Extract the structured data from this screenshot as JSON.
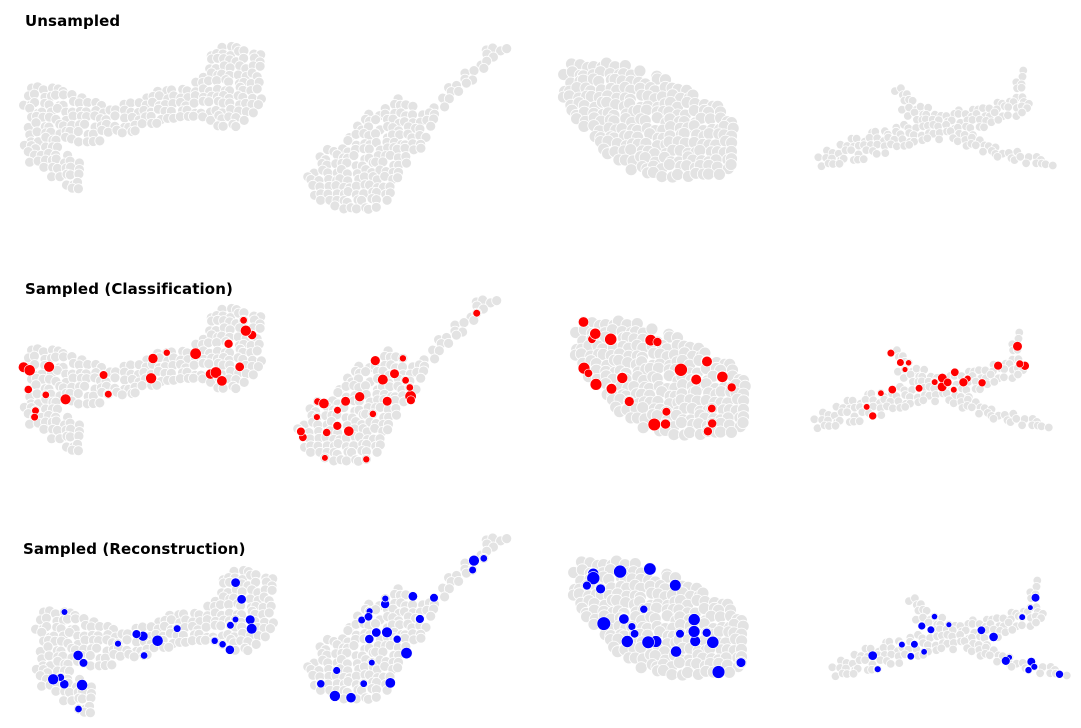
{
  "rows": [
    {
      "id": "unsampled",
      "label": "Unsampled",
      "highlight_color": null
    },
    {
      "id": "sampled-classification",
      "label": "Sampled (Classification)",
      "highlight_color": "#ff0000"
    },
    {
      "id": "sampled-reconstruction",
      "label": "Sampled (Reconstruction)",
      "highlight_color": "#0000ff"
    }
  ],
  "objects": [
    "chair",
    "guitar",
    "car",
    "airplane"
  ],
  "colors": {
    "point": "#e3e3e3",
    "point_edge": "#ffffff",
    "classification": "#ff0000",
    "reconstruction": "#0000ff"
  }
}
